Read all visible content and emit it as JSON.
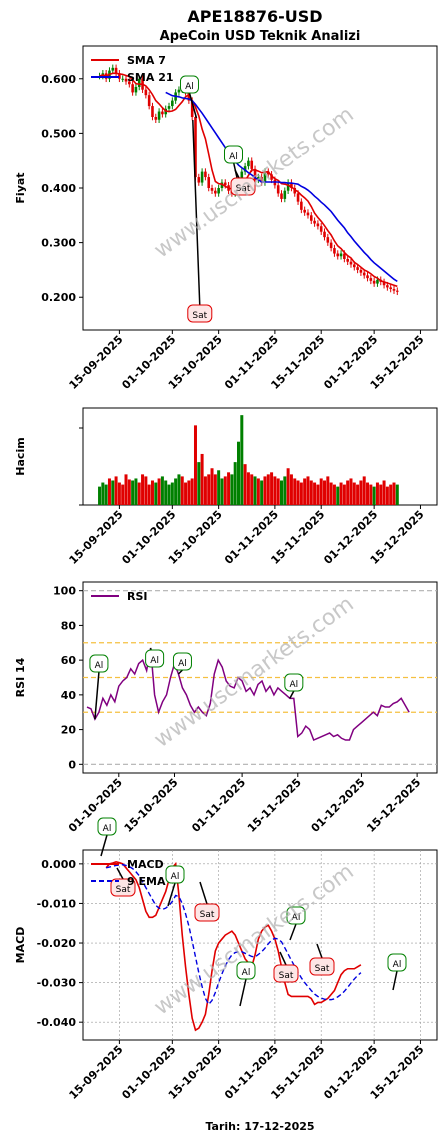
{
  "header": {
    "title": "APE18876-USD",
    "subtitle": "ApeCoin USD Teknik Analizi",
    "footer": "Tarih: 17-12-2025"
  },
  "watermark": "www.uscmarkets.com",
  "colors": {
    "up": "#008000",
    "down": "#e00000",
    "sma7": "#e00000",
    "sma21": "#0000e0",
    "rsi": "#800080",
    "macd": "#e00000",
    "signal": "#0000e0",
    "buy_border": "#008000",
    "sell_border": "#e00000",
    "level_line": "#f5c040",
    "zero_line": "#b0b0b0",
    "watermark": "#b0b0b0"
  },
  "chart_data": [
    {
      "type": "line",
      "name": "price",
      "ylabel": "Fiyat",
      "ylim": [
        0.14,
        0.66
      ],
      "yticks": [
        "0.200",
        "0.300",
        "0.400",
        "0.500",
        "0.600"
      ],
      "yticks_v": [
        0.2,
        0.3,
        0.4,
        0.5,
        0.6
      ],
      "xticks": [
        "15-09-2025",
        "01-10-2025",
        "15-10-2025",
        "01-11-2025",
        "15-11-2025",
        "01-12-2025",
        "15-12-2025"
      ],
      "xticks_day": [
        6,
        22,
        36,
        53,
        67,
        83,
        97
      ],
      "day_range": [
        -5,
        102
      ],
      "legend": [
        "SMA 7",
        "SMA 21"
      ],
      "legend_position": "top-left",
      "close": [
        0.605,
        0.61,
        0.6,
        0.615,
        0.62,
        0.61,
        0.6,
        0.6,
        0.595,
        0.59,
        0.575,
        0.585,
        0.6,
        0.58,
        0.57,
        0.55,
        0.53,
        0.525,
        0.54,
        0.535,
        0.545,
        0.55,
        0.56,
        0.575,
        0.58,
        0.585,
        0.575,
        0.56,
        0.53,
        0.42,
        0.41,
        0.43,
        0.42,
        0.4,
        0.395,
        0.39,
        0.4,
        0.41,
        0.405,
        0.395,
        0.39,
        0.4,
        0.41,
        0.43,
        0.44,
        0.45,
        0.435,
        0.415,
        0.42,
        0.41,
        0.43,
        0.425,
        0.415,
        0.405,
        0.39,
        0.38,
        0.395,
        0.41,
        0.4,
        0.39,
        0.375,
        0.36,
        0.355,
        0.35,
        0.34,
        0.335,
        0.33,
        0.32,
        0.31,
        0.3,
        0.29,
        0.28,
        0.275,
        0.28,
        0.27,
        0.265,
        0.26,
        0.255,
        0.25,
        0.245,
        0.24,
        0.235,
        0.23,
        0.225,
        0.232,
        0.228,
        0.222,
        0.218,
        0.215,
        0.212,
        0.21
      ],
      "sma7": [
        0.605,
        0.607,
        0.605,
        0.608,
        0.61,
        0.61,
        0.609,
        0.608,
        0.606,
        0.604,
        0.598,
        0.591,
        0.59,
        0.59,
        0.587,
        0.58,
        0.571,
        0.56,
        0.554,
        0.547,
        0.541,
        0.54,
        0.541,
        0.544,
        0.551,
        0.558,
        0.567,
        0.571,
        0.56,
        0.548,
        0.532,
        0.508,
        0.49,
        0.462,
        0.433,
        0.412,
        0.408,
        0.407,
        0.403,
        0.4,
        0.398,
        0.399,
        0.402,
        0.408,
        0.413,
        0.423,
        0.433,
        0.433,
        0.431,
        0.428,
        0.429,
        0.43,
        0.422,
        0.417,
        0.414,
        0.408,
        0.407,
        0.405,
        0.402,
        0.397,
        0.393,
        0.387,
        0.382,
        0.376,
        0.366,
        0.354,
        0.346,
        0.339,
        0.331,
        0.322,
        0.314,
        0.303,
        0.294,
        0.289,
        0.282,
        0.276,
        0.272,
        0.264,
        0.26,
        0.255,
        0.25,
        0.247,
        0.243,
        0.238,
        0.235,
        0.23,
        0.228,
        0.226,
        0.224,
        0.222,
        0.22
      ],
      "sma21": [
        null,
        null,
        null,
        null,
        null,
        null,
        null,
        null,
        null,
        null,
        null,
        null,
        null,
        null,
        null,
        null,
        null,
        null,
        null,
        null,
        0.575,
        0.572,
        0.569,
        0.568,
        0.567,
        0.565,
        0.564,
        0.563,
        0.56,
        0.553,
        0.545,
        0.537,
        0.528,
        0.519,
        0.51,
        0.501,
        0.492,
        0.483,
        0.474,
        0.465,
        0.457,
        0.449,
        0.442,
        0.437,
        0.433,
        0.428,
        0.424,
        0.419,
        0.415,
        0.411,
        0.411,
        0.411,
        0.411,
        0.411,
        0.411,
        0.41,
        0.41,
        0.409,
        0.409,
        0.408,
        0.407,
        0.403,
        0.4,
        0.396,
        0.391,
        0.385,
        0.38,
        0.374,
        0.369,
        0.363,
        0.357,
        0.349,
        0.341,
        0.334,
        0.327,
        0.318,
        0.311,
        0.303,
        0.296,
        0.289,
        0.282,
        0.276,
        0.269,
        0.263,
        0.258,
        0.253,
        0.248,
        0.243,
        0.238,
        0.233,
        0.229
      ],
      "annotations": [
        {
          "label": "Al",
          "day": 29
        },
        {
          "label": "Al",
          "day": 42
        },
        {
          "label": "Sat",
          "day": 47
        },
        {
          "label": "Sat",
          "day": 30
        }
      ]
    },
    {
      "type": "bar",
      "name": "volume",
      "ylabel": "Hacim",
      "xticks": [
        "15-09-2025",
        "01-10-2025",
        "15-10-2025",
        "01-11-2025",
        "15-11-2025",
        "01-12-2025",
        "15-12-2025"
      ],
      "xticks_day": [
        6,
        22,
        36,
        53,
        67,
        83,
        97
      ],
      "values": [
        18,
        22,
        20,
        26,
        24,
        28,
        22,
        20,
        30,
        25,
        24,
        26,
        22,
        30,
        28,
        20,
        24,
        22,
        26,
        28,
        24,
        20,
        22,
        26,
        30,
        28,
        22,
        24,
        26,
        78,
        42,
        50,
        28,
        30,
        36,
        30,
        34,
        26,
        28,
        32,
        30,
        42,
        62,
        88,
        40,
        32,
        30,
        28,
        26,
        24,
        28,
        30,
        32,
        28,
        26,
        24,
        28,
        36,
        30,
        26,
        24,
        22,
        26,
        28,
        24,
        22,
        20,
        26,
        24,
        28,
        22,
        20,
        18,
        22,
        20,
        24,
        26,
        22,
        20,
        24,
        28,
        22,
        20,
        18,
        22,
        20,
        24,
        18,
        20,
        22,
        20
      ],
      "up": [
        1,
        1,
        1,
        0,
        1,
        0,
        0,
        0,
        0,
        0,
        1,
        1,
        0,
        0,
        0,
        0,
        0,
        1,
        0,
        1,
        1,
        1,
        1,
        1,
        1,
        0,
        0,
        0,
        0,
        0,
        1,
        0,
        0,
        0,
        0,
        0,
        1,
        1,
        0,
        0,
        1,
        1,
        1,
        1,
        0,
        0,
        0,
        1,
        0,
        1,
        0,
        0,
        0,
        0,
        0,
        1,
        1,
        0,
        0,
        0,
        0,
        0,
        0,
        0,
        0,
        0,
        0,
        0,
        0,
        0,
        0,
        0,
        1,
        0,
        0,
        0,
        0,
        0,
        0,
        0,
        0,
        0,
        0,
        1,
        0,
        0,
        0,
        0,
        0,
        0,
        1
      ],
      "ylim": [
        0,
        95
      ]
    },
    {
      "type": "line",
      "name": "rsi",
      "ylabel": "RSI 14",
      "ylim": [
        -5,
        105
      ],
      "yticks": [
        "0",
        "20",
        "40",
        "60",
        "80",
        "100"
      ],
      "yticks_v": [
        0,
        20,
        40,
        60,
        80,
        100
      ],
      "levels": [
        30,
        50,
        70
      ],
      "xticks": [
        "01-10-2025",
        "15-10-2025",
        "01-11-2025",
        "15-11-2025",
        "01-12-2025",
        "15-12-2025"
      ],
      "xticks_day": [
        22,
        36,
        53,
        67,
        83,
        97
      ],
      "day_range": [
        13,
        102
      ],
      "legend": [
        "RSI"
      ],
      "legend_position": "top-left",
      "values": [
        33,
        32,
        26,
        30,
        38,
        34,
        40,
        36,
        45,
        48,
        50,
        55,
        52,
        58,
        60,
        54,
        67,
        40,
        30,
        36,
        40,
        50,
        58,
        52,
        44,
        40,
        34,
        30,
        33,
        30,
        28,
        35,
        52,
        60,
        56,
        48,
        45,
        44,
        50,
        48,
        42,
        44,
        40,
        46,
        48,
        42,
        45,
        40,
        44,
        42,
        40,
        38,
        38,
        16,
        18,
        22,
        20,
        14,
        15,
        16,
        17,
        18,
        16,
        17,
        15,
        14,
        14,
        20,
        22,
        24,
        26,
        28,
        30,
        28,
        34,
        33,
        33,
        35,
        36,
        38,
        34,
        30
      ],
      "annotations": [
        {
          "label": "Al",
          "day": 16
        },
        {
          "label": "Al",
          "day": 30
        },
        {
          "label": "Al",
          "day": 37
        },
        {
          "label": "Al",
          "day": 65
        }
      ]
    },
    {
      "type": "line",
      "name": "macd",
      "ylabel": "MACD",
      "ylim": [
        -0.0445,
        0.0035
      ],
      "yticks": [
        "-0.040",
        "-0.030",
        "-0.020",
        "-0.010",
        "0.000"
      ],
      "yticks_v": [
        -0.04,
        -0.03,
        -0.02,
        -0.01,
        0.0
      ],
      "xticks": [
        "15-09-2025",
        "01-10-2025",
        "15-10-2025",
        "01-11-2025",
        "15-11-2025",
        "01-12-2025",
        "15-12-2025"
      ],
      "xticks_day": [
        6,
        22,
        36,
        53,
        67,
        83,
        97
      ],
      "day_range": [
        -5,
        102
      ],
      "legend": [
        "MACD",
        "9 EMA"
      ],
      "legend_position": "top-left",
      "macd": [
        -0.001,
        0.0,
        0.0002,
        0.0005,
        0.0003,
        0.0,
        -0.001,
        -0.002,
        -0.003,
        -0.004,
        -0.006,
        -0.009,
        -0.012,
        -0.0135,
        -0.0135,
        -0.013,
        -0.011,
        -0.009,
        -0.007,
        -0.004,
        -0.001,
        0.0,
        -0.008,
        -0.018,
        -0.026,
        -0.033,
        -0.039,
        -0.042,
        -0.0415,
        -0.04,
        -0.038,
        -0.033,
        -0.027,
        -0.022,
        -0.02,
        -0.019,
        -0.018,
        -0.0175,
        -0.017,
        -0.018,
        -0.02,
        -0.022,
        -0.024,
        -0.025,
        -0.026,
        -0.023,
        -0.019,
        -0.017,
        -0.016,
        -0.0155,
        -0.017,
        -0.019,
        -0.022,
        -0.026,
        -0.03,
        -0.033,
        -0.0335,
        -0.0335,
        -0.0335,
        -0.0335,
        -0.0335,
        -0.0335,
        -0.034,
        -0.0355,
        -0.035,
        -0.035,
        -0.0345,
        -0.034,
        -0.033,
        -0.032,
        -0.03,
        -0.028,
        -0.027,
        -0.0265,
        -0.0265,
        -0.0265,
        -0.026,
        -0.0255
      ],
      "signal": [
        -0.001,
        -0.0008,
        -0.0006,
        -0.0004,
        -0.0003,
        -0.0002,
        -0.0004,
        -0.0007,
        -0.0012,
        -0.002,
        -0.003,
        -0.0045,
        -0.006,
        -0.0075,
        -0.009,
        -0.0105,
        -0.0112,
        -0.0115,
        -0.0112,
        -0.0105,
        -0.0095,
        -0.008,
        -0.0083,
        -0.01,
        -0.0126,
        -0.0157,
        -0.0195,
        -0.0235,
        -0.0275,
        -0.031,
        -0.034,
        -0.0355,
        -0.0345,
        -0.0325,
        -0.03,
        -0.0278,
        -0.0258,
        -0.0242,
        -0.023,
        -0.0224,
        -0.0222,
        -0.0222,
        -0.0226,
        -0.023,
        -0.0234,
        -0.0235,
        -0.0229,
        -0.0222,
        -0.0213,
        -0.0202,
        -0.0193,
        -0.0188,
        -0.019,
        -0.0197,
        -0.0212,
        -0.0228,
        -0.0244,
        -0.0259,
        -0.0274,
        -0.0288,
        -0.03,
        -0.031,
        -0.032,
        -0.0329,
        -0.0335,
        -0.0339,
        -0.0342,
        -0.0343,
        -0.0343,
        -0.0341,
        -0.0336,
        -0.033,
        -0.0322,
        -0.0312,
        -0.0301,
        -0.0291,
        -0.0282,
        -0.0275
      ],
      "annotations": [
        {
          "label": "Al",
          "day": -1
        },
        {
          "label": "Sat",
          "day": 4
        },
        {
          "label": "Al",
          "day": 19
        },
        {
          "label": "Sat",
          "day": 25
        },
        {
          "label": "Al",
          "day": 36
        },
        {
          "label": "Sat",
          "day": 47
        },
        {
          "label": "Al",
          "day": 50
        },
        {
          "label": "Sat",
          "day": 55
        },
        {
          "label": "Al",
          "day": 91
        }
      ]
    }
  ]
}
